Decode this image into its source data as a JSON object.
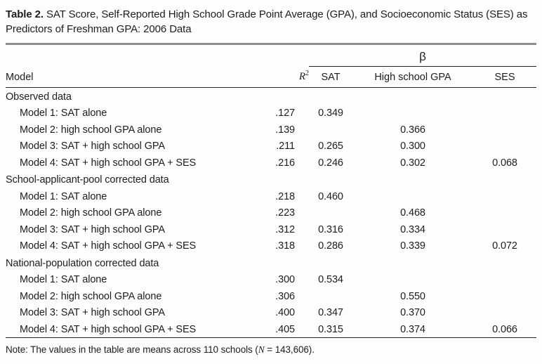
{
  "title": {
    "label": "Table 2.",
    "text": " SAT Score, Self-Reported High School Grade Point Average (GPA), and Socioeconomic Status (SES) as Predictors of Freshman GPA: 2006 Data"
  },
  "header": {
    "model": "Model",
    "r2_base": "R",
    "r2_sup": "2",
    "beta": "β",
    "sat": "SAT",
    "hs_gpa": "High school GPA",
    "ses": "SES"
  },
  "sections": [
    {
      "label": "Observed data",
      "rows": [
        {
          "label": "Model 1: SAT alone",
          "r2": ".127",
          "sat": "0.349",
          "hs_gpa": "",
          "ses": ""
        },
        {
          "label": "Model 2: high school GPA alone",
          "r2": ".139",
          "sat": "",
          "hs_gpa": "0.366",
          "ses": ""
        },
        {
          "label": "Model 3: SAT + high school GPA",
          "r2": ".211",
          "sat": "0.265",
          "hs_gpa": "0.300",
          "ses": ""
        },
        {
          "label": "Model 4: SAT + high school GPA + SES",
          "r2": ".216",
          "sat": "0.246",
          "hs_gpa": "0.302",
          "ses": "0.068"
        }
      ]
    },
    {
      "label": "School-applicant-pool corrected data",
      "rows": [
        {
          "label": "Model 1: SAT alone",
          "r2": ".218",
          "sat": "0.460",
          "hs_gpa": "",
          "ses": ""
        },
        {
          "label": "Model 2: high school GPA alone",
          "r2": ".223",
          "sat": "",
          "hs_gpa": "0.468",
          "ses": ""
        },
        {
          "label": "Model 3: SAT + high school GPA",
          "r2": ".312",
          "sat": "0.316",
          "hs_gpa": "0.334",
          "ses": ""
        },
        {
          "label": "Model 4: SAT + high school GPA + SES",
          "r2": ".318",
          "sat": "0.286",
          "hs_gpa": "0.339",
          "ses": "0.072"
        }
      ]
    },
    {
      "label": "National-population corrected data",
      "rows": [
        {
          "label": "Model 1: SAT alone",
          "r2": ".300",
          "sat": "0.534",
          "hs_gpa": "",
          "ses": ""
        },
        {
          "label": "Model 2: high school GPA alone",
          "r2": ".306",
          "sat": "",
          "hs_gpa": "0.550",
          "ses": ""
        },
        {
          "label": "Model 3: SAT + high school GPA",
          "r2": ".400",
          "sat": "0.347",
          "hs_gpa": "0.370",
          "ses": ""
        },
        {
          "label": "Model 4: SAT + high school GPA + SES",
          "r2": ".405",
          "sat": "0.315",
          "hs_gpa": "0.374",
          "ses": "0.066"
        }
      ]
    }
  ],
  "note": {
    "prefix": "Note: The values in the table are means across 110 schools (",
    "n_symbol": "N",
    "suffix": " = 143,606)."
  }
}
